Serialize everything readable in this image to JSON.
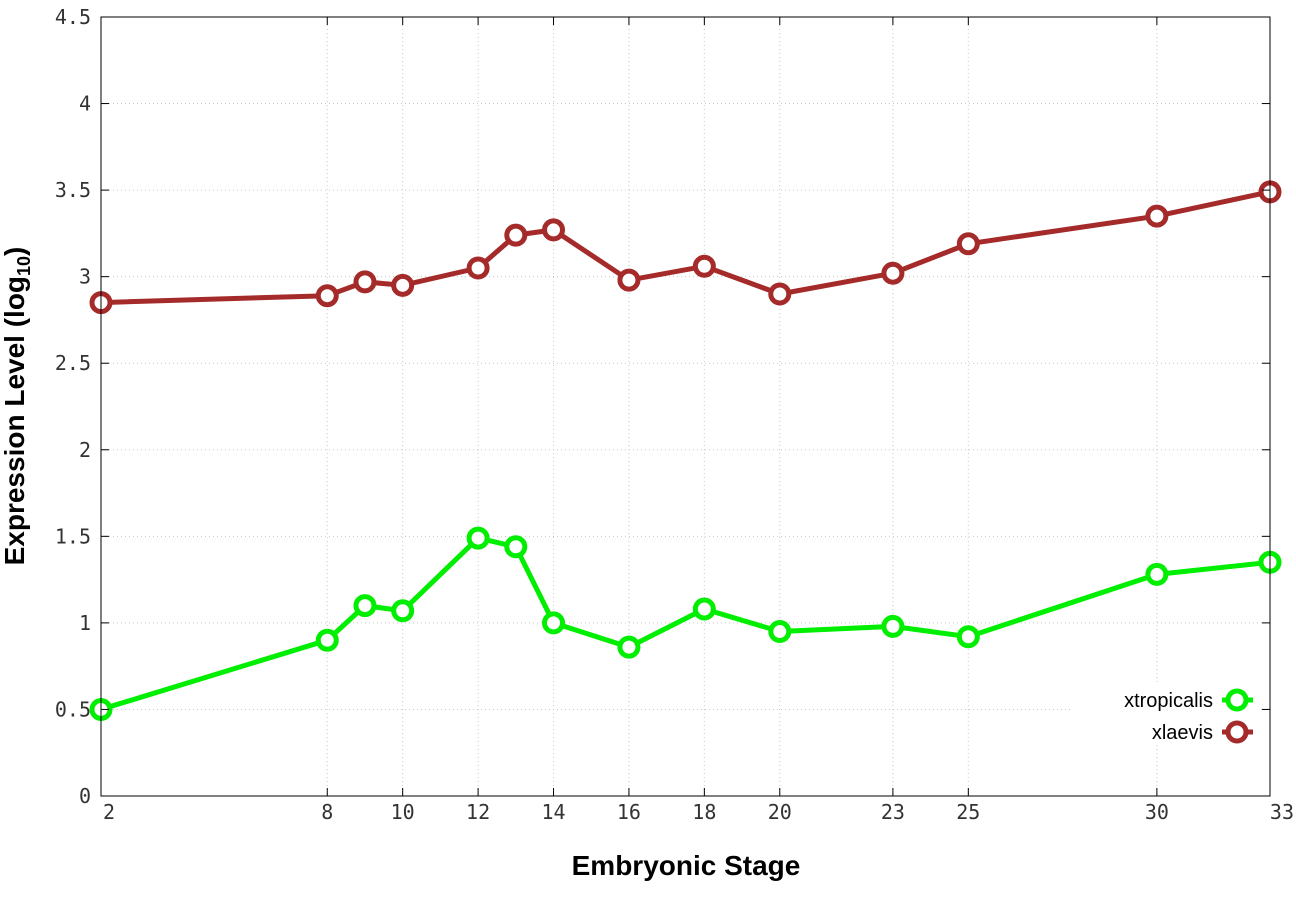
{
  "chart_data": {
    "type": "line",
    "xlabel": "Embryonic Stage",
    "ylabel": "Expression Level (log",
    "ylabel_sub": "10",
    "ylabel_end": ")",
    "x": [
      2,
      8,
      9,
      10,
      12,
      13,
      14,
      16,
      18,
      20,
      23,
      25,
      30,
      33
    ],
    "xticks": [
      "2",
      "8",
      "10",
      "12",
      "14",
      "16",
      "18",
      "20",
      "23",
      "25",
      "30",
      "33"
    ],
    "yticks": [
      "0",
      "0.5",
      "1",
      "1.5",
      "2",
      "2.5",
      "3",
      "3.5",
      "4",
      "4.5"
    ],
    "ylim": [
      0,
      4.5
    ],
    "grid": true,
    "legend_position": "bottom-right",
    "series": [
      {
        "name": "xtropicalis",
        "color": "#00ee00",
        "values": [
          0.5,
          0.9,
          1.1,
          1.07,
          1.49,
          1.44,
          1.0,
          0.86,
          1.08,
          0.95,
          0.98,
          0.92,
          1.28,
          1.35
        ]
      },
      {
        "name": "xlaevis",
        "color": "#a52a2a",
        "values": [
          2.85,
          2.89,
          2.97,
          2.95,
          3.05,
          3.24,
          3.27,
          2.98,
          3.06,
          2.9,
          3.02,
          3.19,
          3.35,
          3.49
        ]
      }
    ]
  }
}
